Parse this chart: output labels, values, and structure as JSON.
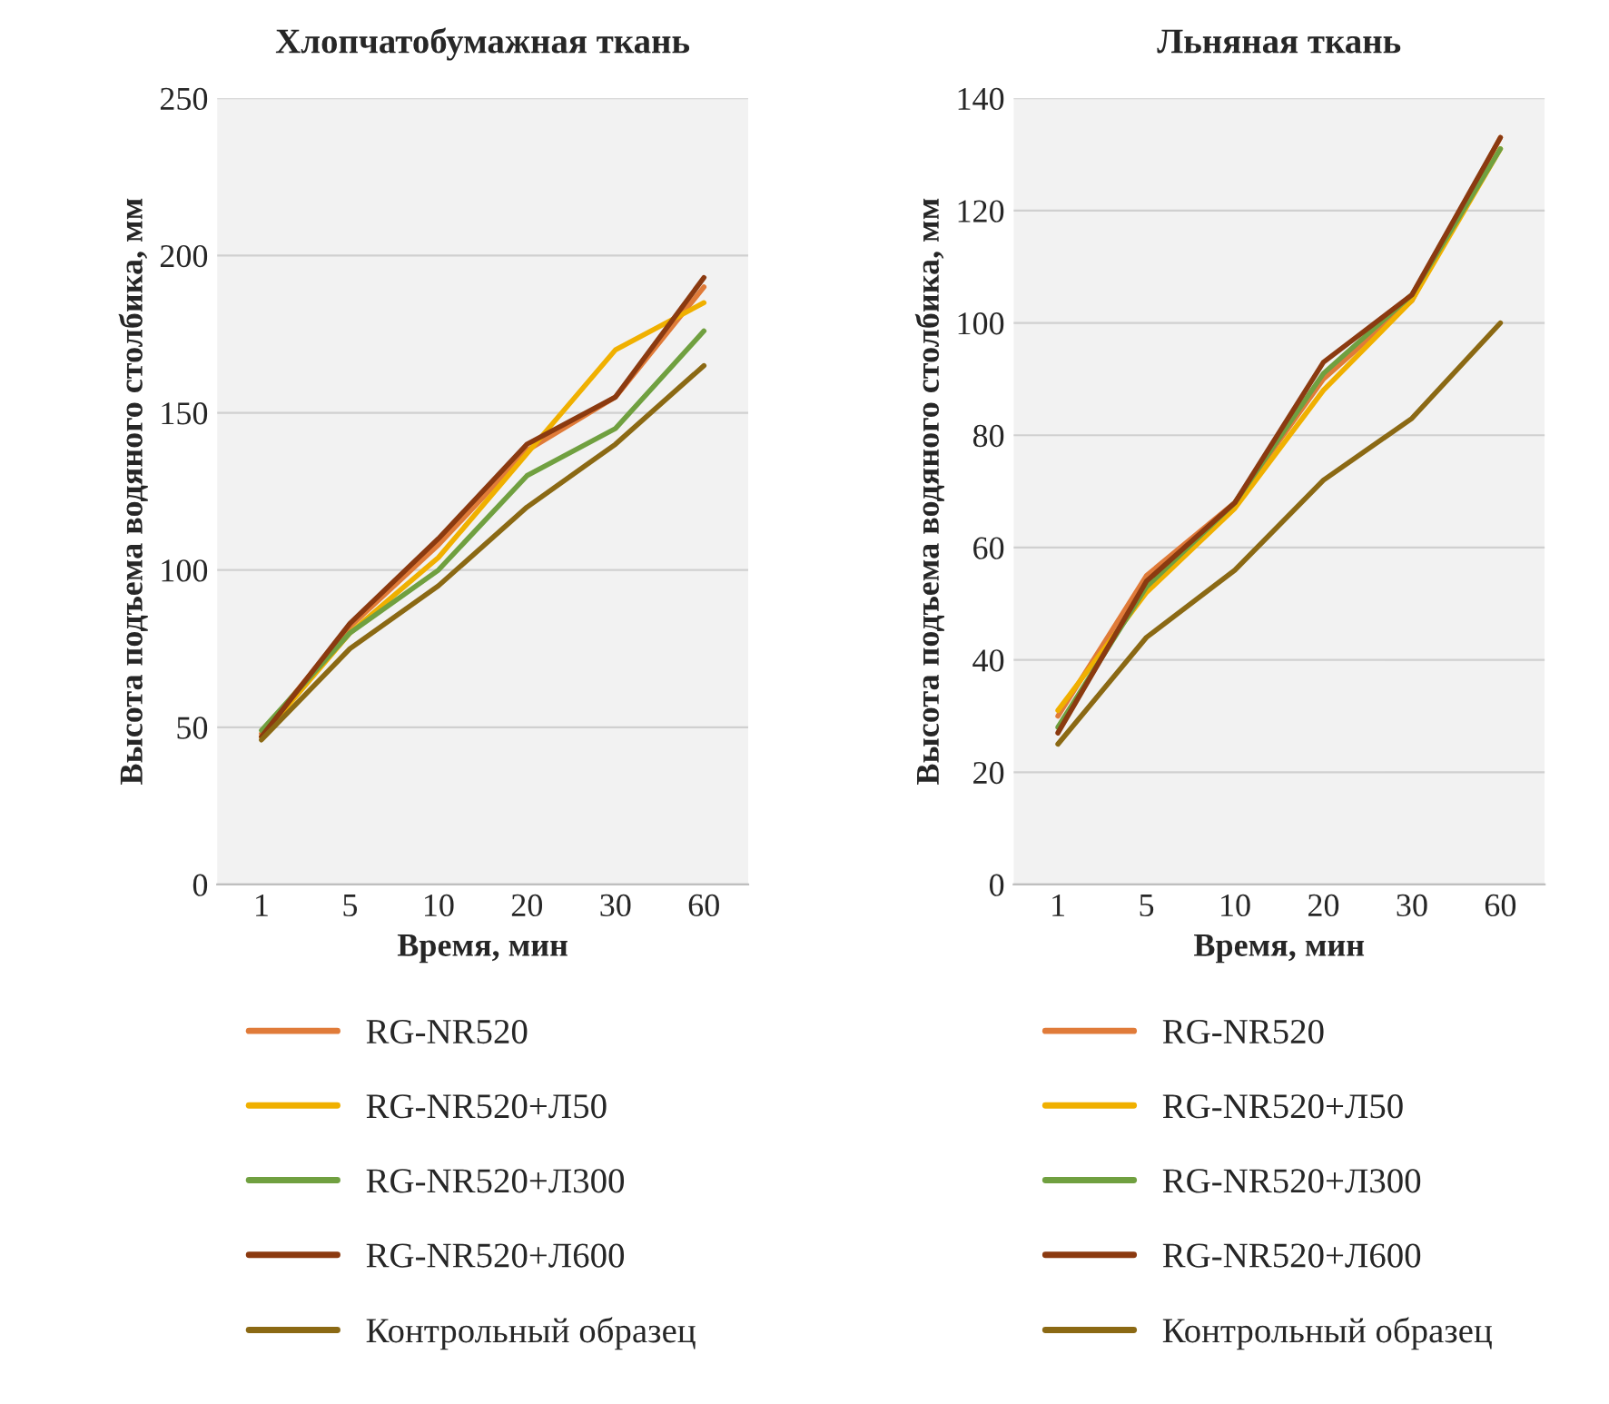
{
  "chart_data": [
    {
      "type": "line",
      "title": "Хлопчатобумажная ткань",
      "xlabel": "Время, мин",
      "ylabel": "Высота подъема водяного столбика, мм",
      "categories": [
        "1",
        "5",
        "10",
        "20",
        "30",
        "60"
      ],
      "ylim": [
        0,
        250
      ],
      "yticks": [
        0,
        50,
        100,
        150,
        200,
        250
      ],
      "grid": "y",
      "legend": "bottom",
      "marker": "none",
      "line_style": "solid",
      "series": [
        {
          "name": "RG-NR520",
          "color": "#e07b39",
          "values": [
            48,
            82,
            108,
            138,
            155,
            190
          ]
        },
        {
          "name": "RG-NR520+Л50",
          "color": "#f0b000",
          "values": [
            47,
            80,
            104,
            137,
            170,
            185
          ]
        },
        {
          "name": "RG-NR520+Л300",
          "color": "#70a040",
          "values": [
            49,
            80,
            100,
            130,
            145,
            176
          ]
        },
        {
          "name": "RG-NR520+Л600",
          "color": "#8b3a10",
          "values": [
            47,
            83,
            110,
            140,
            155,
            193
          ]
        },
        {
          "name": "Контрольный образец",
          "color": "#8b6914",
          "values": [
            46,
            75,
            95,
            120,
            140,
            165
          ]
        }
      ]
    },
    {
      "type": "line",
      "title": "Льняная ткань",
      "xlabel": "Время, мин",
      "ylabel": "Высота подъема водяного столбика, мм",
      "categories": [
        "1",
        "5",
        "10",
        "20",
        "30",
        "60"
      ],
      "ylim": [
        0,
        140
      ],
      "yticks": [
        0,
        20,
        40,
        60,
        80,
        100,
        120,
        140
      ],
      "grid": "y",
      "legend": "bottom",
      "marker": "none",
      "line_style": "solid",
      "series": [
        {
          "name": "RG-NR520",
          "color": "#e07b39",
          "values": [
            30,
            55,
            68,
            90,
            104,
            133
          ]
        },
        {
          "name": "RG-NR520+Л50",
          "color": "#f0b000",
          "values": [
            31,
            52,
            67,
            88,
            104,
            131
          ]
        },
        {
          "name": "RG-NR520+Л300",
          "color": "#70a040",
          "values": [
            28,
            53,
            68,
            91,
            105,
            131
          ]
        },
        {
          "name": "RG-NR520+Л600",
          "color": "#8b3a10",
          "values": [
            27,
            54,
            68,
            93,
            105,
            133
          ]
        },
        {
          "name": "Контрольный образец",
          "color": "#8b6914",
          "values": [
            25,
            44,
            56,
            72,
            83,
            100
          ]
        }
      ]
    }
  ]
}
